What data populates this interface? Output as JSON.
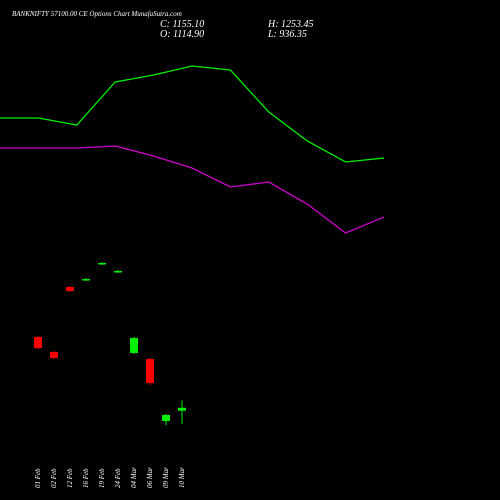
{
  "chart_data": [
    {
      "type": "candlestick",
      "title": "BANKNIFTY 57100.00 CE Options Chart MunafaSutra.com",
      "header": [
        "C: 1155.10",
        "O: 1114.90",
        "H: 1253.45",
        "L: 936.35"
      ],
      "categories": [
        "01 Feb",
        "02 Feb",
        "12 Feb",
        "16 Feb",
        "19 Feb",
        "24 Feb",
        "04 Mar",
        "06 Mar",
        "09 Mar",
        "10 Mar"
      ],
      "open": [
        2104,
        1903,
        2774,
        2868,
        3082,
        2975,
        1890,
        1809,
        978,
        1114.9
      ],
      "close": [
        1957,
        1823,
        2721,
        2881,
        3096,
        2989,
        2091,
        1488,
        1059,
        1155.1
      ],
      "high": [
        2117,
        1917,
        2788,
        2895,
        3109,
        3002,
        2104,
        1823,
        1072,
        1253.45
      ],
      "low": [
        1943,
        1809,
        2707,
        2855,
        3069,
        2962,
        1876,
        1461,
        925,
        936.35
      ],
      "up_color": "#00ee00",
      "down_color": "#ff0000",
      "ylim": [
        0,
        6500
      ]
    },
    {
      "type": "line",
      "categories": [
        null,
        null,
        null,
        null,
        null,
        null,
        null,
        null,
        null,
        null,
        null
      ],
      "series": [
        {
          "color": "#00ee00",
          "values": [
            382,
            382,
            375,
            418,
            425,
            434,
            430,
            388,
            359,
            338,
            342
          ]
        },
        {
          "color": "#cc00cc",
          "values": [
            352,
            352,
            352,
            354,
            344,
            332,
            313,
            318,
            296,
            267,
            283
          ]
        }
      ],
      "ylim": [
        0,
        500
      ]
    }
  ]
}
